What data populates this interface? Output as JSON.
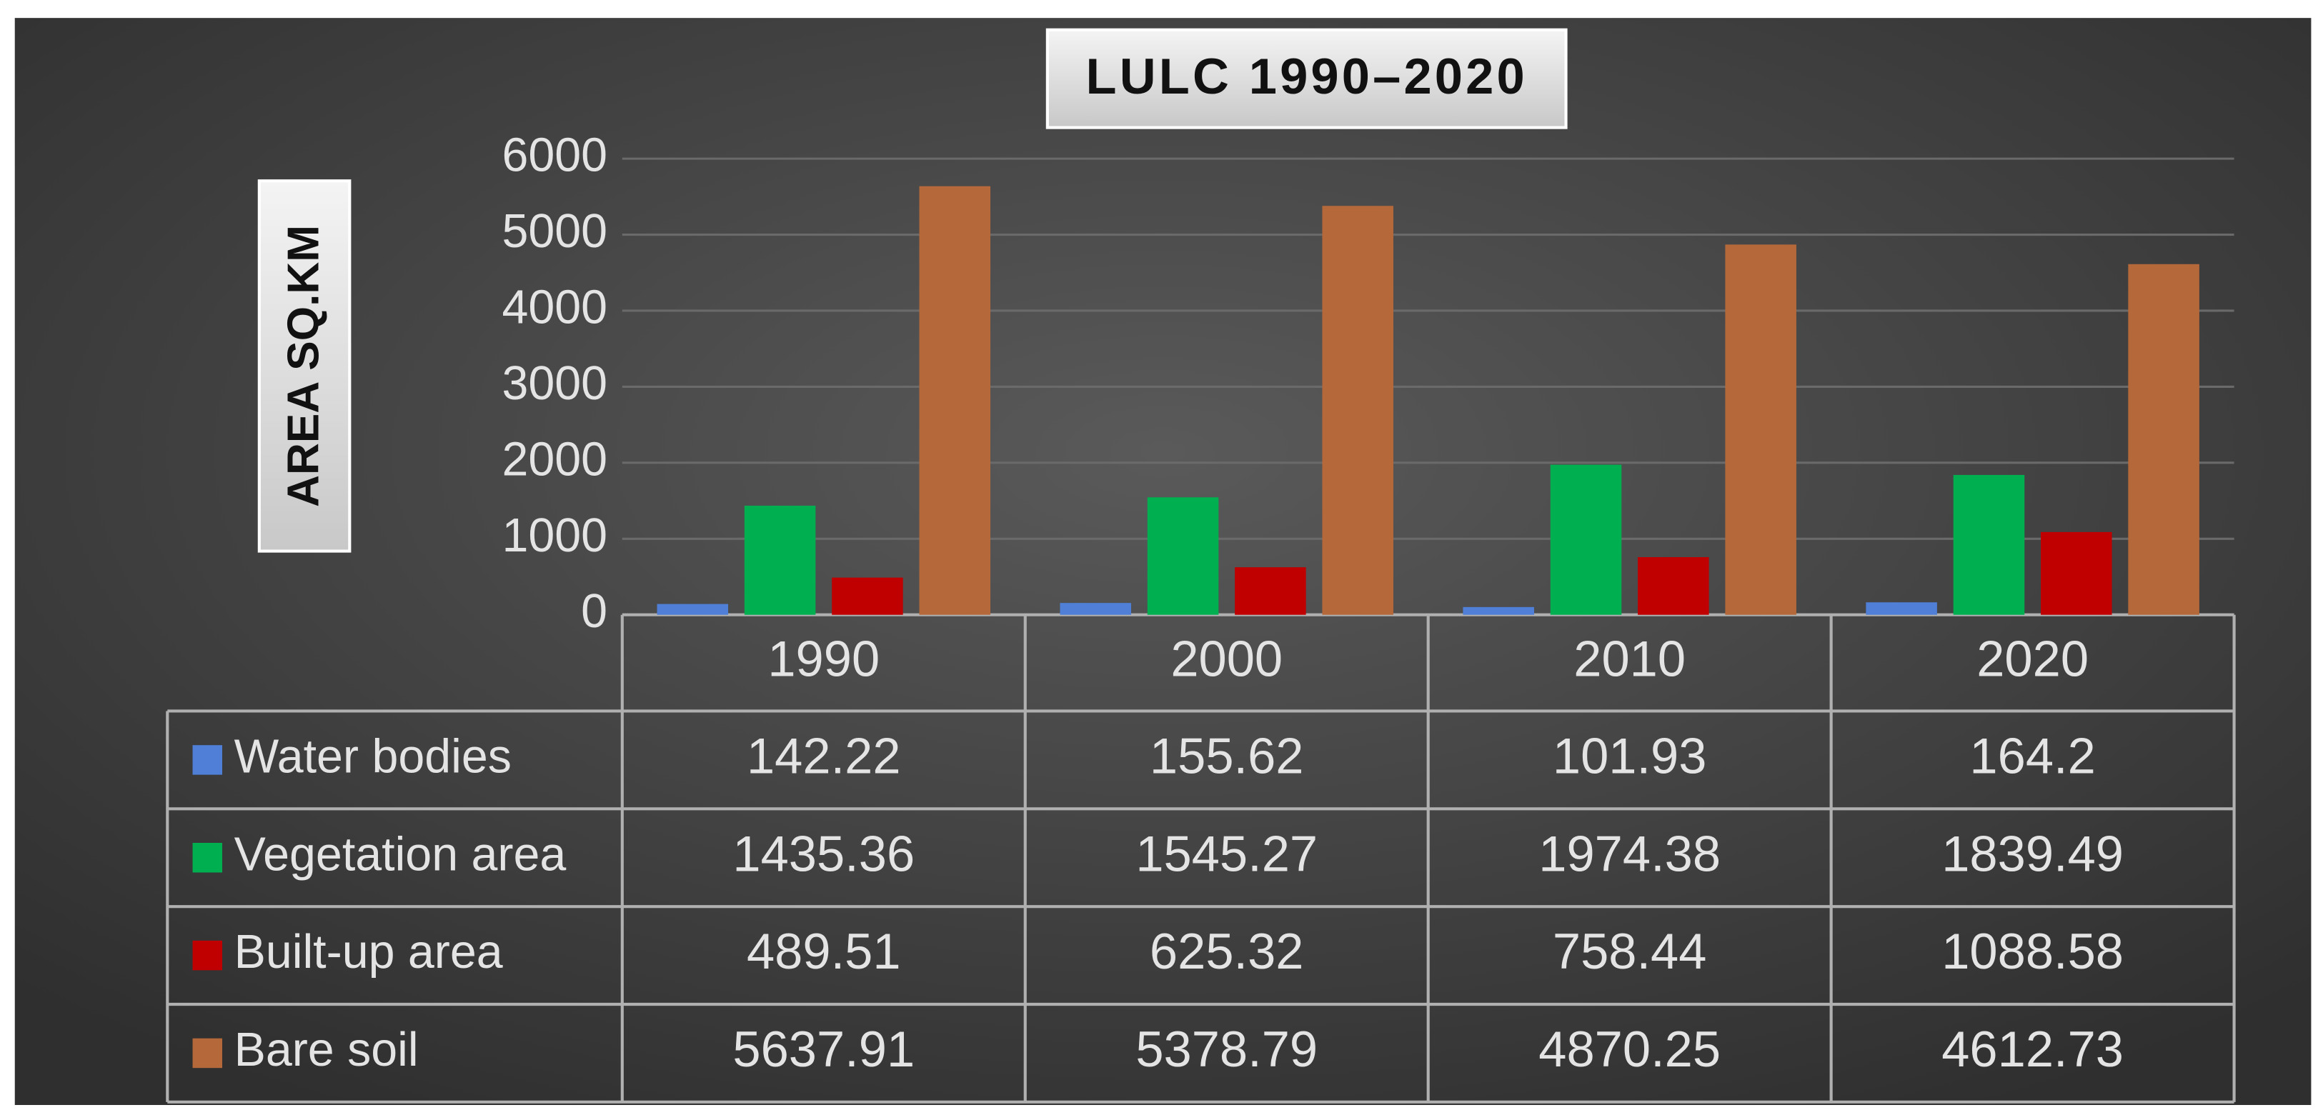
{
  "chart_data": {
    "type": "bar",
    "title": "LULC 1990–2020",
    "y_label": "AREA SQ.KM",
    "categories": [
      "1990",
      "2000",
      "2010",
      "2020"
    ],
    "series": [
      {
        "name": "Water bodies",
        "color": "#4f7fd6",
        "values": [
          142.22,
          155.62,
          101.93,
          164.2
        ]
      },
      {
        "name": "Vegetation area",
        "color": "#00b050",
        "values": [
          1435.36,
          1545.27,
          1974.38,
          1839.49
        ]
      },
      {
        "name": "Built-up area",
        "color": "#c00000",
        "values": [
          489.51,
          625.32,
          758.44,
          1088.58
        ]
      },
      {
        "name": "Bare soil",
        "color": "#b5693a",
        "values": [
          5637.91,
          5378.79,
          4870.25,
          4612.73
        ]
      }
    ],
    "ylim": [
      0,
      6000
    ],
    "yticks": [
      0,
      1000,
      2000,
      3000,
      4000,
      5000,
      6000
    ],
    "grid": true
  }
}
